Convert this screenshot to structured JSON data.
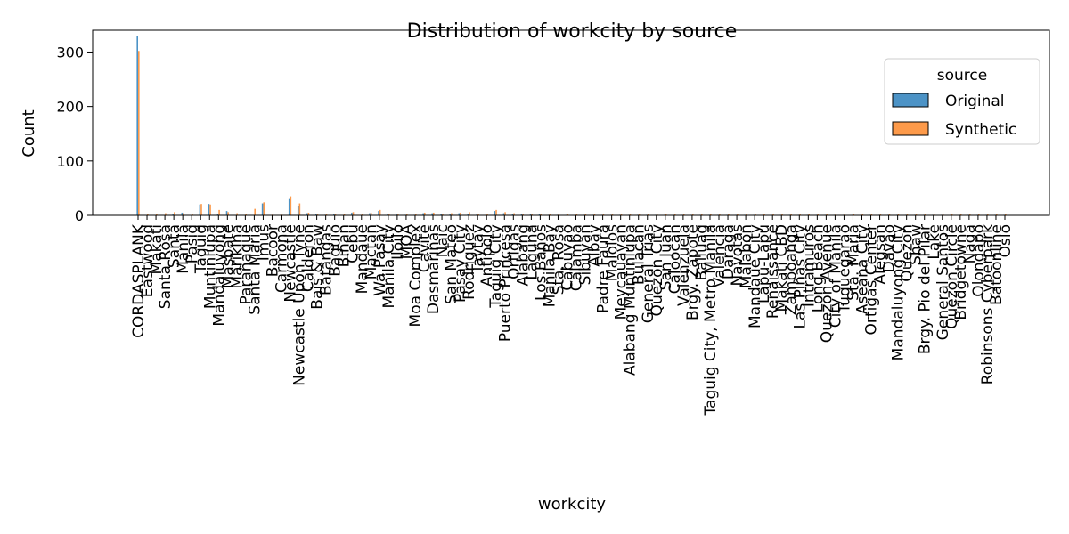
{
  "chart_data": {
    "type": "bar",
    "title": "Distribution of workcity by source",
    "xlabel": "workcity",
    "ylabel": "Count",
    "ylim": [
      0,
      340
    ],
    "yticks": [
      0,
      100,
      200,
      300
    ],
    "grid": false,
    "legend": {
      "title": "source",
      "placement": "top-right"
    },
    "colors": {
      "Original": "#4c93c6",
      "Synthetic": "#fd9a4a"
    },
    "categories": [
      "CORDASPLANK",
      "Eastwood",
      "Makati",
      "Santa Rosa",
      "Santa",
      "Manila",
      "Pasig",
      "Taguig",
      "Muntinlupa",
      "Mandaluyong",
      "Masbate",
      "Marikina",
      "Parañaque",
      "Santa Maria",
      "Imus",
      "Bacoor",
      "Carmona",
      "Newcastle",
      "Newcastle Upon Tyne",
      "Calderon",
      "Bais & Baw",
      "Batangas",
      "Baguio",
      "Biñan",
      "Cebu",
      "Mandaue",
      "Mactan",
      "Wa Pasay",
      "Manila City",
      "Iloilo",
      "MOA",
      "Moa Complex",
      "Cavite",
      "Dasmariñas",
      "Naic",
      "San Mateo",
      "Pasay City",
      "Rodriguez",
      "Taytay",
      "Antipolo",
      "Taguig City",
      "Puerto Princesa",
      "Ortigas",
      "Alabang",
      "Laguna",
      "Los Baños",
      "Manila Bay",
      "Sta. Rosa",
      "Cabuyao",
      "Calamba",
      "Sibuyan",
      "Albay",
      "Padre Faura",
      "Malolos",
      "Meycauayan",
      "Alabang Muntinlupa",
      "Bulacan",
      "General Trias",
      "Quezon City",
      "San Juan",
      "Caloocan",
      "Valenzuela",
      "Brgy. Zapote",
      "Baliuag",
      "Taguig City, Metro Manila",
      "Valencia",
      "Daraga",
      "Navotas",
      "Malabon",
      "Mandaue City",
      "Lapu-Lapu",
      "Renaissance",
      "Makati CBD",
      "Zamboanga",
      "Las Piñas City",
      "Intramuros",
      "Long Beach",
      "Quezon Avenue",
      "City of Manila",
      "Tuguegarao",
      "Sta. Maria",
      "Aseana City",
      "Ortigas Center",
      "Alegsan",
      "Davao",
      "Mandaluyong City",
      "Quezon",
      "Shaw",
      "Brgy. Pio del Pilar",
      "Lake",
      "General Santos",
      "Quezon Circle",
      "Bridgetowne",
      "Naga",
      "Olongapo",
      "Robinsons Cyberpark",
      "Batoonline",
      "Oslo"
    ],
    "series": [
      {
        "name": "Original",
        "values": [
          330,
          0,
          0,
          0,
          3,
          5,
          0,
          20,
          21,
          2,
          8,
          0,
          0,
          0,
          22,
          0,
          0,
          30,
          18,
          4,
          2,
          1,
          3,
          0,
          5,
          0,
          4,
          8,
          2,
          2,
          1,
          1,
          4,
          4,
          2,
          3,
          4,
          3,
          2,
          1,
          8,
          4,
          3,
          2,
          2,
          2,
          1,
          1,
          1,
          1,
          1,
          1,
          1,
          1,
          1,
          1,
          1,
          1,
          1,
          1,
          1,
          1,
          1,
          1,
          1,
          1,
          1,
          1,
          1,
          1,
          1,
          1,
          1,
          1,
          1,
          1,
          1,
          1,
          1,
          1,
          1,
          1,
          1,
          1,
          1,
          1,
          1,
          1,
          1,
          1,
          1,
          1,
          1,
          1,
          1,
          1,
          1,
          1
        ]
      },
      {
        "name": "Synthetic",
        "values": [
          302,
          2,
          3,
          4,
          6,
          4,
          3,
          21,
          20,
          10,
          6,
          4,
          3,
          12,
          24,
          2,
          3,
          35,
          22,
          5,
          3,
          2,
          2,
          3,
          6,
          3,
          5,
          10,
          3,
          3,
          2,
          2,
          5,
          5,
          3,
          4,
          5,
          6,
          3,
          2,
          10,
          6,
          4,
          3,
          3,
          3,
          2,
          2,
          2,
          2,
          2,
          2,
          2,
          2,
          2,
          2,
          2,
          2,
          2,
          2,
          2,
          2,
          2,
          2,
          2,
          2,
          2,
          2,
          2,
          2,
          2,
          2,
          2,
          2,
          2,
          2,
          2,
          2,
          2,
          2,
          2,
          2,
          2,
          2,
          2,
          2,
          2,
          2,
          2,
          2,
          2,
          2,
          2,
          2,
          2,
          2,
          2,
          2
        ]
      }
    ]
  }
}
